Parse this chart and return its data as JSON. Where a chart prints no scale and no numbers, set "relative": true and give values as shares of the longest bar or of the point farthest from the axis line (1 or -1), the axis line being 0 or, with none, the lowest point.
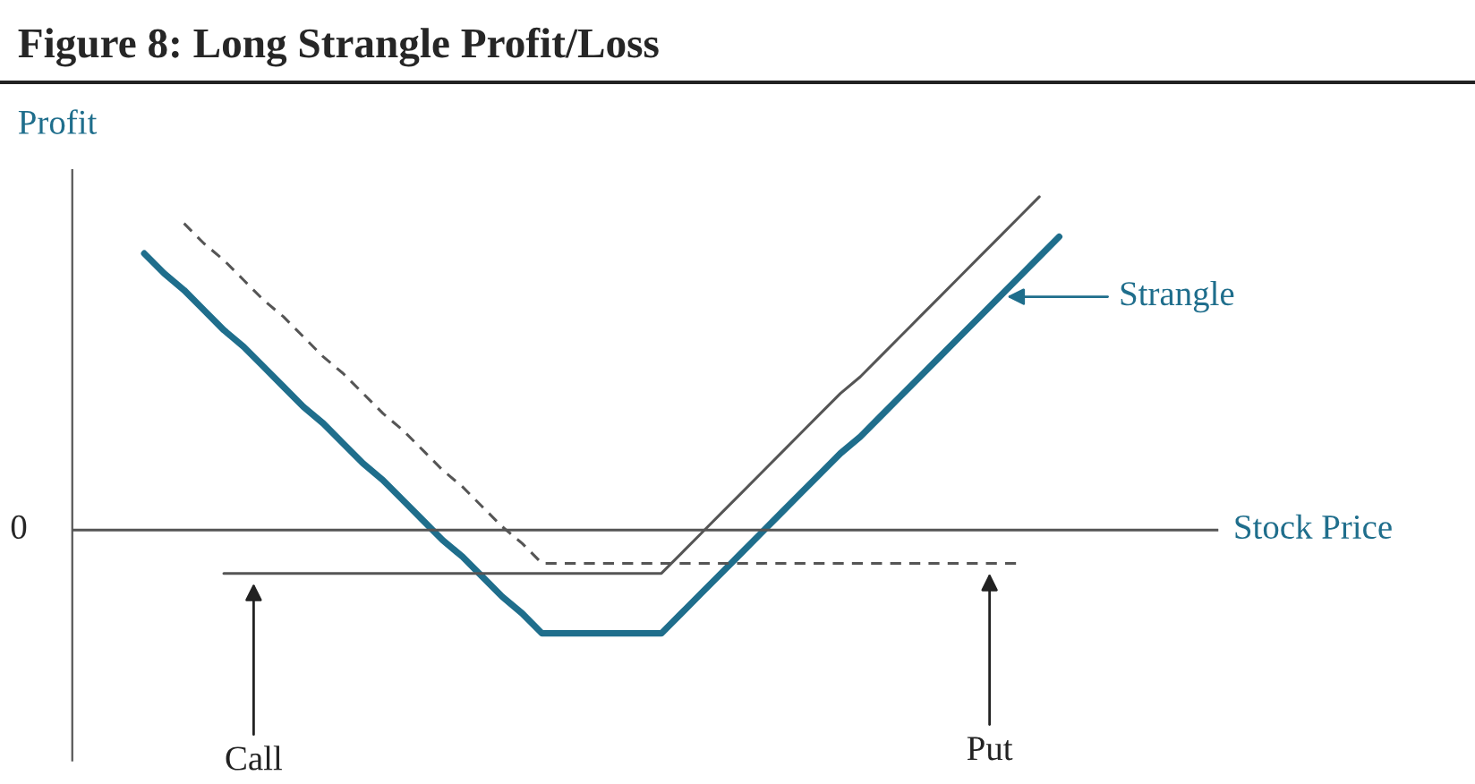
{
  "chart_data": {
    "type": "line",
    "title": "Figure 8: Long Strangle Profit/Loss",
    "xlabel": "Stock Price",
    "ylabel": "Profit",
    "relative": true,
    "marker": "none",
    "categories": [
      null,
      null,
      null,
      null,
      null,
      null,
      null,
      null,
      null,
      null,
      null,
      null,
      null,
      null,
      null,
      null,
      null,
      null,
      null,
      null,
      null,
      null,
      null,
      null,
      null,
      null,
      null,
      null,
      null,
      null,
      null,
      null,
      null,
      null,
      null,
      null,
      null,
      null,
      null,
      null,
      null,
      null,
      null,
      null,
      null,
      null,
      null
    ],
    "series": [
      {
        "name": "Strangle",
        "color": "#1f6e8c",
        "line_style": "solid",
        "values": [
          0.83,
          0.77,
          0.72,
          0.66,
          0.6,
          0.55,
          0.49,
          0.43,
          0.37,
          0.32,
          0.26,
          0.2,
          0.15,
          0.09,
          0.03,
          -0.03,
          -0.08,
          -0.14,
          -0.2,
          -0.25,
          -0.31,
          -0.31,
          -0.31,
          -0.31,
          -0.31,
          -0.31,
          -0.31,
          -0.25,
          -0.19,
          -0.13,
          -0.07,
          -0.01,
          0.05,
          0.11,
          0.17,
          0.23,
          0.28,
          0.34,
          0.4,
          0.46,
          0.52,
          0.58,
          0.64,
          0.7,
          0.76,
          0.82,
          0.88
        ]
      },
      {
        "name": "Call",
        "color": "#555555",
        "line_style": "solid",
        "values": [
          null,
          null,
          null,
          null,
          -0.13,
          -0.13,
          -0.13,
          -0.13,
          -0.13,
          -0.13,
          -0.13,
          -0.13,
          -0.13,
          -0.13,
          -0.13,
          -0.13,
          -0.13,
          -0.13,
          -0.13,
          -0.13,
          -0.13,
          -0.13,
          -0.13,
          -0.13,
          -0.13,
          -0.13,
          -0.13,
          -0.07,
          -0.01,
          0.05,
          0.11,
          0.17,
          0.23,
          0.29,
          0.35,
          0.41,
          0.46,
          0.52,
          0.58,
          0.64,
          0.7,
          0.76,
          0.82,
          0.88,
          0.94,
          1.0,
          null
        ]
      },
      {
        "name": "Put",
        "color": "#555555",
        "line_style": "dashed",
        "values": [
          null,
          null,
          0.92,
          0.86,
          0.81,
          0.75,
          0.69,
          0.64,
          0.58,
          0.52,
          0.47,
          0.41,
          0.35,
          0.3,
          0.24,
          0.18,
          0.13,
          0.07,
          0.01,
          -0.04,
          -0.1,
          -0.1,
          -0.1,
          -0.1,
          -0.1,
          -0.1,
          -0.1,
          -0.1,
          -0.1,
          -0.1,
          -0.1,
          -0.1,
          -0.1,
          -0.1,
          -0.1,
          -0.1,
          -0.1,
          -0.1,
          -0.1,
          -0.1,
          -0.1,
          -0.1,
          -0.1,
          -0.1,
          -0.1,
          null,
          null
        ]
      }
    ],
    "ref_lines": [
      {
        "axis": "y",
        "value": 0,
        "label": "0",
        "color": "#555555"
      }
    ]
  }
}
